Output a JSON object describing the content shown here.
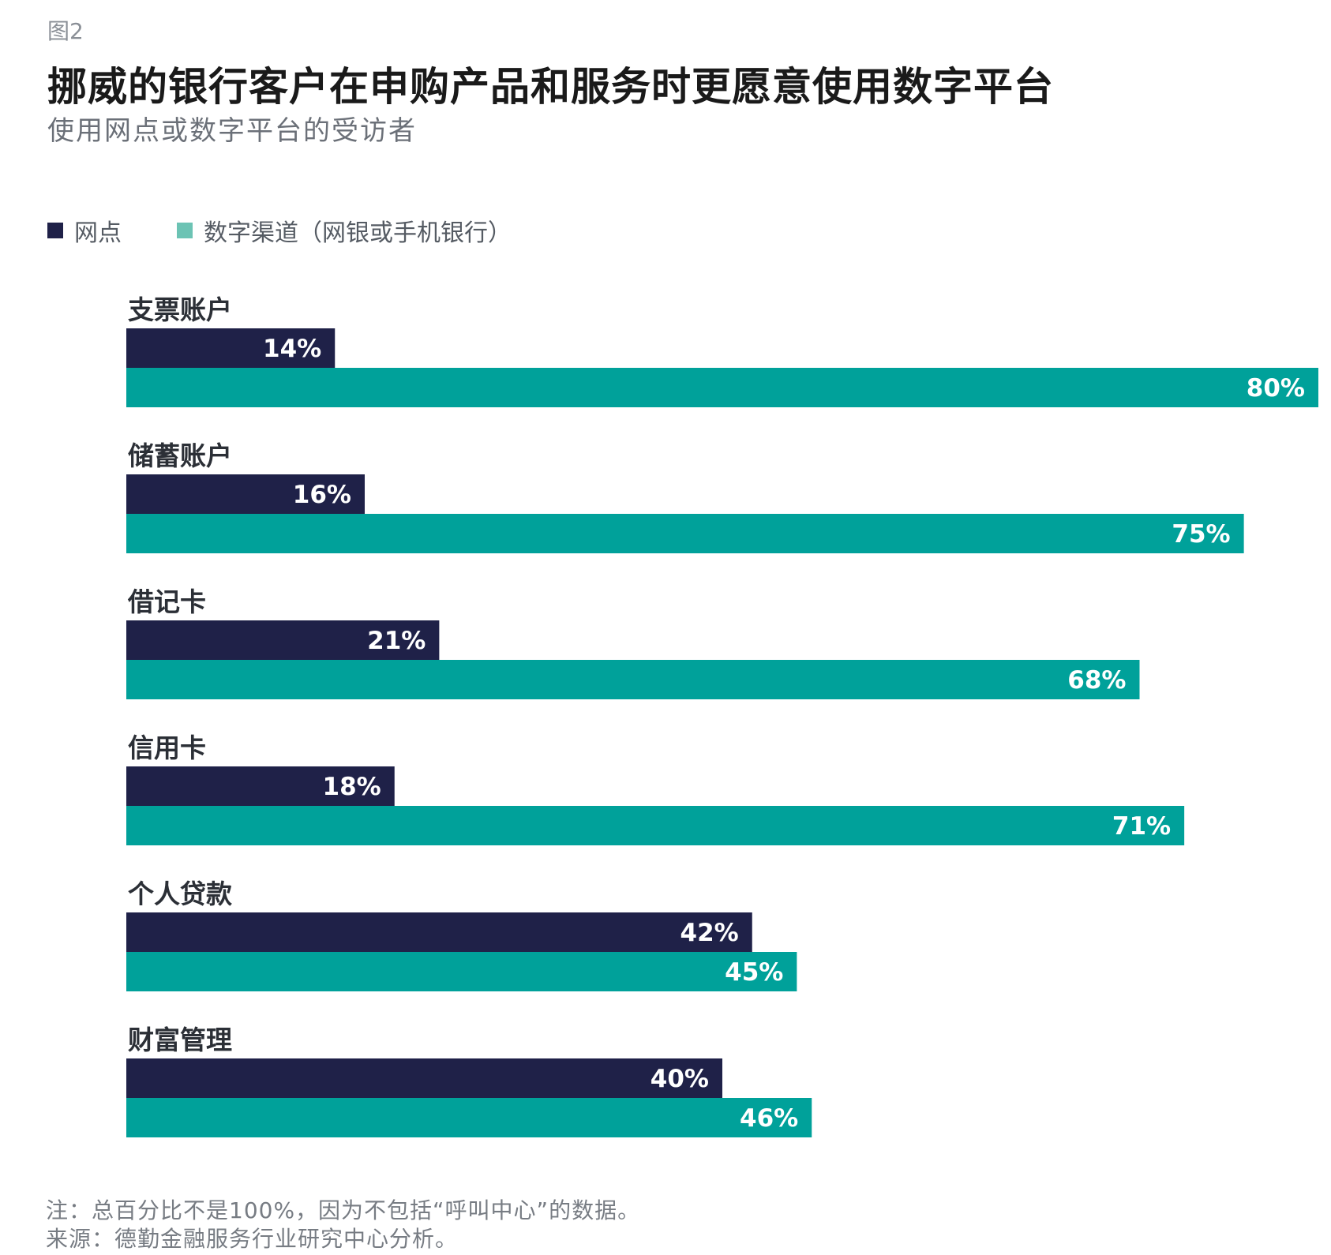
{
  "figure_label": "图2",
  "colors": {
    "branch": "#1f2148",
    "digital": "#00a19a"
  },
  "chart_data": {
    "type": "bar",
    "orientation": "horizontal",
    "title": "挪威的银行客户在申购产品和服务时更愿意使用数字平台",
    "subtitle": "使用网点或数字平台的受访者",
    "categories": [
      "支票账户",
      "储蓄账户",
      "借记卡",
      "信用卡",
      "个人贷款",
      "财富管理"
    ],
    "series": [
      {
        "name": "网点",
        "color": "#1f2148",
        "values": [
          14,
          16,
          21,
          18,
          42,
          40
        ],
        "labels": [
          "14%",
          "16%",
          "21%",
          "18%",
          "42%",
          "40%"
        ]
      },
      {
        "name": "数字渠道（网银或手机银行）",
        "color": "#00a19a",
        "values": [
          80,
          75,
          68,
          71,
          45,
          46
        ],
        "labels": [
          "80%",
          "75%",
          "68%",
          "71%",
          "45%",
          "46%"
        ]
      }
    ],
    "xlim": [
      0,
      80
    ],
    "grid": false,
    "legend_position": "top-left"
  },
  "notes": {
    "note": "注：总百分比不是100%，因为不包括“呼叫中心”的数据。",
    "source": "来源：德勤金融服务行业研究中心分析。"
  }
}
